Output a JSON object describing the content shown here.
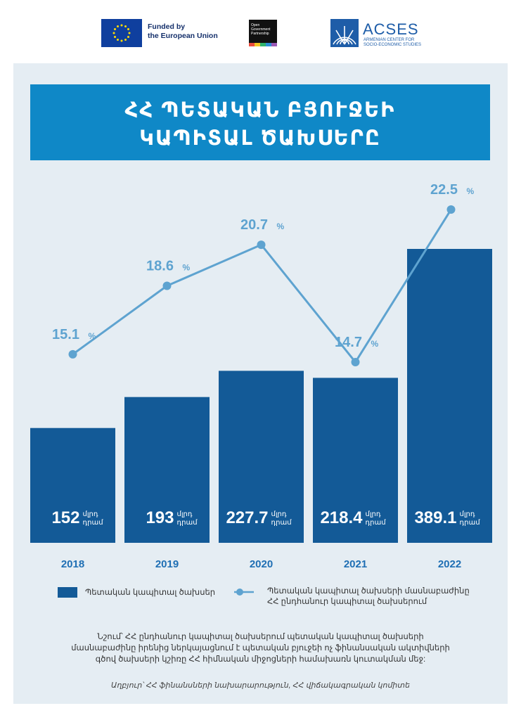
{
  "logos": {
    "eu_line1": "Funded by",
    "eu_line2": "the European Union",
    "ogp_line1": "Open",
    "ogp_line2": "Government",
    "ogp_line3": "Partnership",
    "acses_name": "ACSES",
    "acses_sub1": "ARMENIAN CENTER FOR",
    "acses_sub2": "SOCIO-ECONOMIC STUDIES"
  },
  "title": {
    "line1": "ՀՀ ՊԵՏԱԿԱՆ ԲՅՈՒՋԵԻ",
    "line2": "ԿԱՊԻՏԱԼ ԾԱԽՍԵՐԸ"
  },
  "legend": {
    "bar_label": "Պետական կապիտալ ծախսեր",
    "line_label_1": "Պետական կապիտալ ծախսերի մասնաբաժինը",
    "line_label_2": "ՀՀ ընդհանուր կապիտալ ծախսերում"
  },
  "note": {
    "line1": "Նշում՝ ՀՀ ընդհանուր կապիտալ ծախսերում պետական կապիտալ ծախսերի",
    "line2": "մասնաբաժինը իրենից ներկայացնում է պետական բյուջեի ոչ ֆինանսական ակտիվների",
    "line3": "գծով ծախսերի կշիռը ՀՀ հիմնական միջոցների համախառն կուտակման մեջ:"
  },
  "source": "Աղբյուր՝ ՀՀ ֆինանսների նախարարություն, ՀՀ վիճակագրական կոմիտե",
  "colors": {
    "bar": "#135a97",
    "line": "#5ea3d0",
    "year": "#1f6fb4",
    "title_bg": "#0f88c7",
    "panel_bg": "#e5edf3"
  },
  "chart_data": {
    "type": "bar+line",
    "categories": [
      "2018",
      "2019",
      "2020",
      "2021",
      "2022"
    ],
    "series": [
      {
        "name": "Պետական կապիտալ ծախսեր",
        "type": "bar",
        "values": [
          152,
          193,
          227.7,
          218.4,
          389.1
        ],
        "value_labels": [
          "152",
          "193",
          "227.7",
          "218.4",
          "389.1"
        ],
        "unit_line1": "մլրդ",
        "unit_line2": "դրամ"
      },
      {
        "name": "Պետական կապիտալ ծախսերի մասնաբաժինը ՀՀ ընդհանուր կապիտալ ծախսերում",
        "type": "line",
        "values": [
          15.1,
          18.6,
          20.7,
          14.7,
          22.5
        ],
        "value_labels": [
          "15.1",
          "18.6",
          "20.7",
          "14.7",
          "22.5"
        ],
        "unit": "%"
      }
    ]
  }
}
